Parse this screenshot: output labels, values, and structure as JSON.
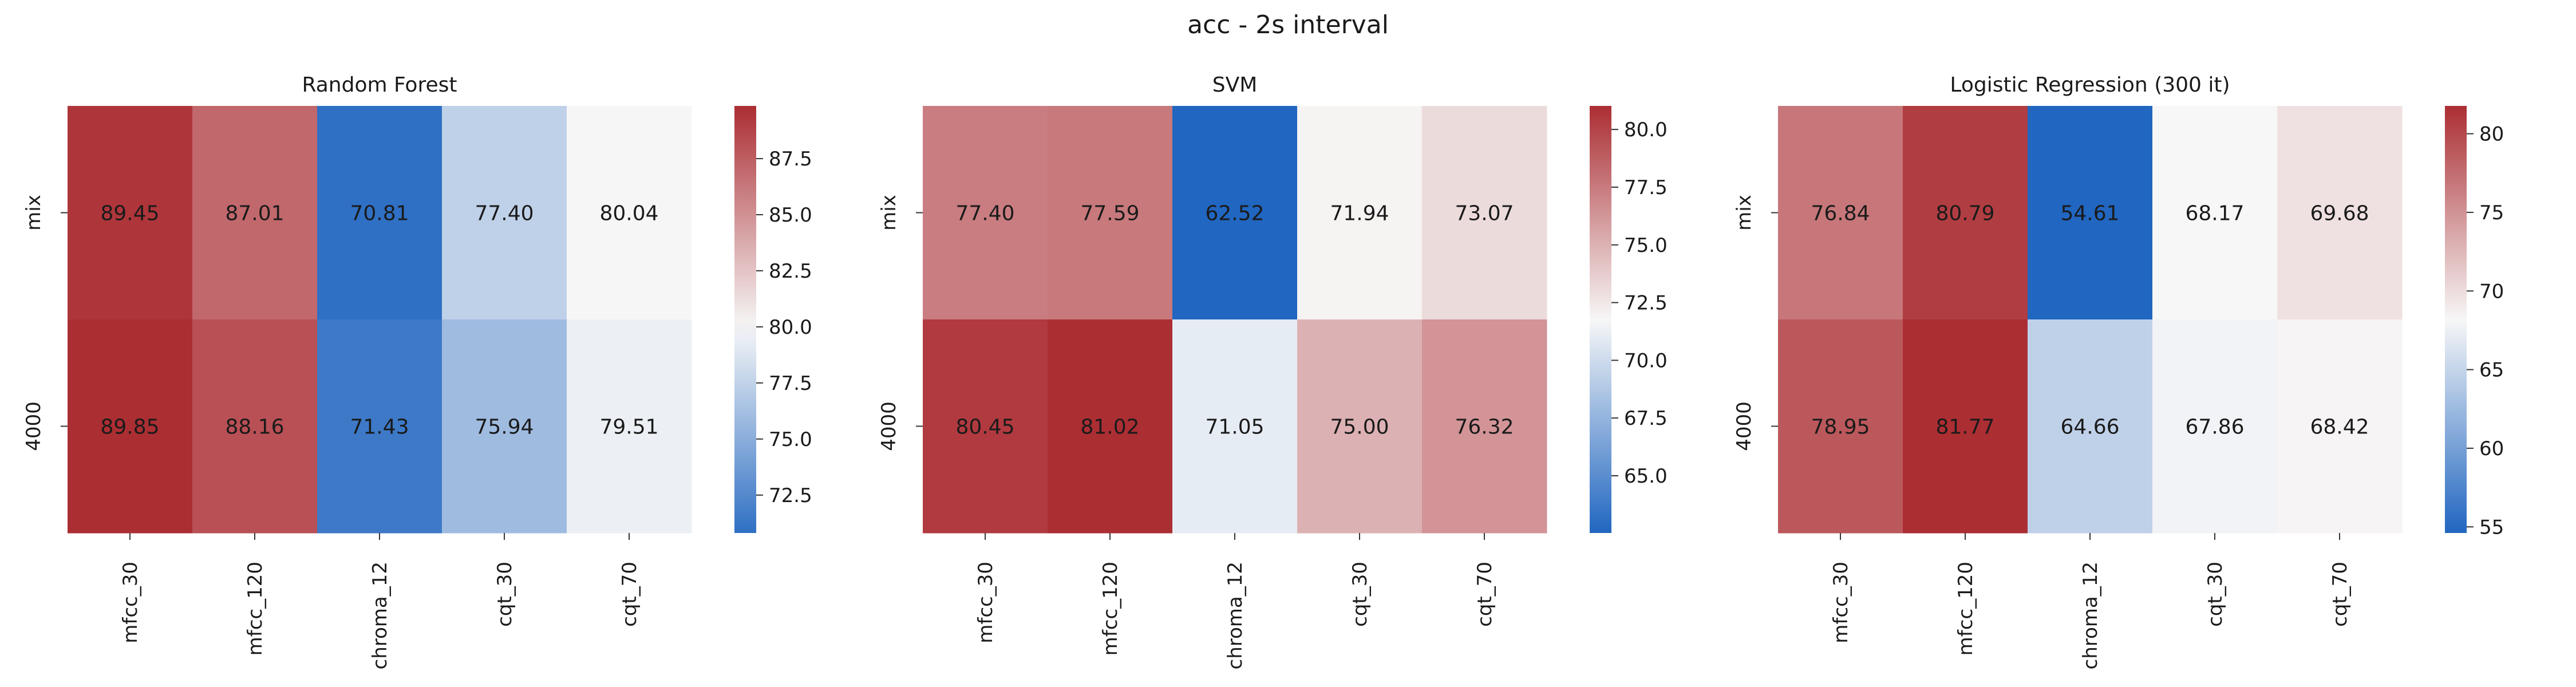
{
  "figure_title": "acc - 2s interval",
  "colormap": {
    "low": "#2166c0",
    "mid": "#f7f7f7",
    "high": "#ab2e33"
  },
  "chart_data": [
    {
      "type": "heatmap",
      "title": "Random Forest",
      "columns": [
        "mfcc_30",
        "mfcc_120",
        "chroma_12",
        "cqt_30",
        "cqt_70"
      ],
      "rows": [
        "mix",
        "4000"
      ],
      "values": [
        [
          89.45,
          87.01,
          70.81,
          77.4,
          80.04
        ],
        [
          89.85,
          88.16,
          71.43,
          75.94,
          79.51
        ]
      ],
      "labels": [
        [
          "89.45",
          "87.01",
          "70.81",
          "77.40",
          "80.04"
        ],
        [
          "89.85",
          "88.16",
          "71.43",
          "75.94",
          "79.51"
        ]
      ],
      "vmin": 70.81,
      "vmax": 89.85,
      "center": 80.0,
      "colorbar_ticks": [
        "72.5",
        "75.0",
        "77.5",
        "80.0",
        "82.5",
        "85.0",
        "87.5"
      ]
    },
    {
      "type": "heatmap",
      "title": "SVM",
      "columns": [
        "mfcc_30",
        "mfcc_120",
        "chroma_12",
        "cqt_30",
        "cqt_70"
      ],
      "rows": [
        "mix",
        "4000"
      ],
      "values": [
        [
          77.4,
          77.59,
          62.52,
          71.94,
          73.07
        ],
        [
          80.45,
          81.02,
          71.05,
          75.0,
          76.32
        ]
      ],
      "labels": [
        [
          "77.40",
          "77.59",
          "62.52",
          "71.94",
          "73.07"
        ],
        [
          "80.45",
          "81.02",
          "71.05",
          "75.00",
          "76.32"
        ]
      ],
      "vmin": 62.52,
      "vmax": 81.02,
      "center": 71.77,
      "colorbar_ticks": [
        "65.0",
        "67.5",
        "70.0",
        "72.5",
        "75.0",
        "77.5",
        "80.0"
      ]
    },
    {
      "type": "heatmap",
      "title": "Logistic Regression (300 it)",
      "columns": [
        "mfcc_30",
        "mfcc_120",
        "chroma_12",
        "cqt_30",
        "cqt_70"
      ],
      "rows": [
        "mix",
        "4000"
      ],
      "values": [
        [
          76.84,
          80.79,
          54.61,
          68.17,
          69.68
        ],
        [
          78.95,
          81.77,
          64.66,
          67.86,
          68.42
        ]
      ],
      "labels": [
        [
          "76.84",
          "80.79",
          "54.61",
          "68.17",
          "69.68"
        ],
        [
          "78.95",
          "81.77",
          "64.66",
          "67.86",
          "68.42"
        ]
      ],
      "vmin": 54.61,
      "vmax": 81.77,
      "center": 68.19,
      "colorbar_ticks": [
        "55",
        "60",
        "65",
        "70",
        "75",
        "80"
      ]
    }
  ]
}
